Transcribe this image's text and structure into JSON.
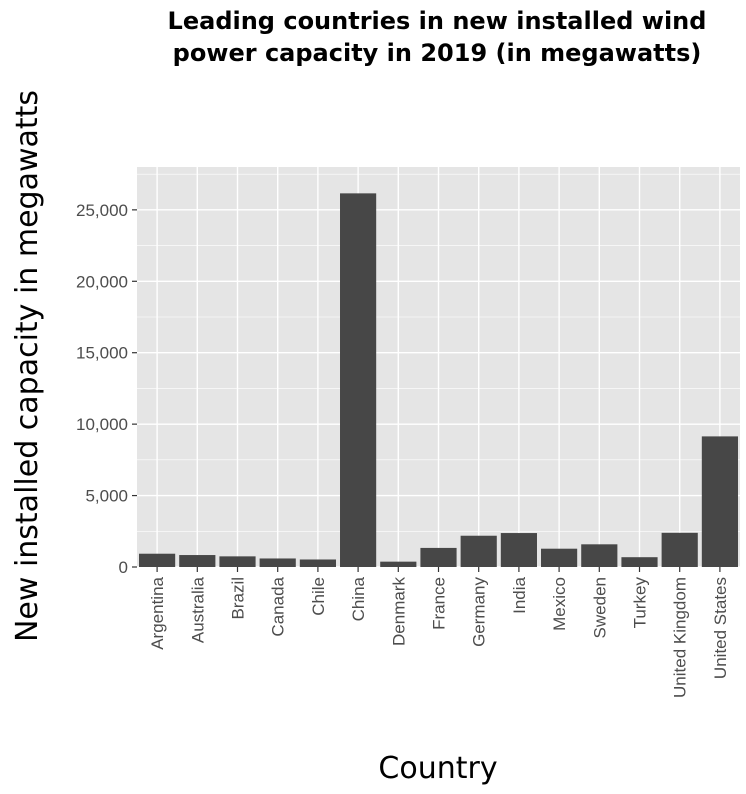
{
  "chart_data": {
    "type": "bar",
    "title_line1": "Leading countries in new installed wind",
    "title_line2": "power capacity in 2019 (in megawatts)",
    "xlabel": "Country",
    "ylabel": "New installed capacity in megawatts",
    "categories": [
      "Argentina",
      "Australia",
      "Brazil",
      "Canada",
      "Chile",
      "China",
      "Denmark",
      "France",
      "Germany",
      "India",
      "Mexico",
      "Sweden",
      "Turkey",
      "United Kingdom",
      "United States"
    ],
    "values": [
      930,
      837,
      745,
      597,
      526,
      26155,
      374,
      1336,
      2189,
      2377,
      1281,
      1588,
      686,
      2393,
      9143
    ],
    "ylim": [
      0,
      28000
    ],
    "yticks": [
      0,
      5000,
      10000,
      15000,
      20000,
      25000
    ],
    "ytick_labels": [
      "0",
      "5,000",
      "10,000",
      "15,000",
      "20,000",
      "25,000"
    ],
    "grid": true,
    "bar_color": "#474747",
    "panel_color": "#e5e5e5",
    "grid_color": "#ffffff"
  }
}
